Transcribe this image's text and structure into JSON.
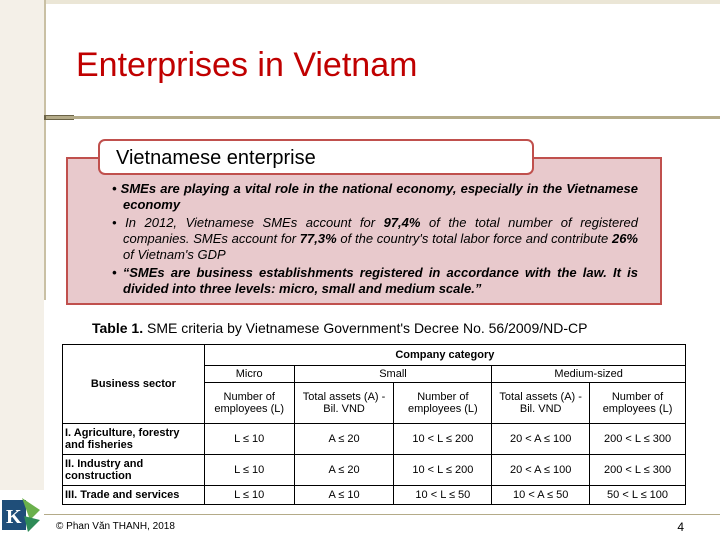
{
  "slide": {
    "title": "Enterprises in Vietnam",
    "heading": "Vietnamese enterprise"
  },
  "bullets": {
    "b1": "• SMEs are playing a vital role in the national economy, especially in the Vietnamese economy",
    "b2_pre": "• In 2012, Vietnamese SMEs account for ",
    "b2_v1": "97,4%",
    "b2_mid1": " of the total number of registered companies. SMEs account for ",
    "b2_v2": "77,3%",
    "b2_mid2": " of the country's total labor force and contribute ",
    "b2_v3": "26%",
    "b2_post": " of Vietnam's GDP",
    "b3": "• “SMEs are business establishments registered in accordance with the law. It is divided into three levels: micro, small and medium scale.”"
  },
  "table": {
    "caption_label": "Table 1.",
    "caption_text": " SME criteria by Vietnamese Government's Decree No. 56/2009/ND-CP",
    "company_category": "Company category",
    "business_sector": "Business sector",
    "levels": [
      "Micro",
      "Small",
      "Medium-sized"
    ],
    "subheaders": [
      "Number of employees (L)",
      "Total assets (A) - Bil. VND",
      "Number of employees (L)",
      "Total assets (A) - Bil. VND",
      "Number of employees (L)"
    ],
    "rows": [
      {
        "sector": "I. Agriculture, forestry and fisheries",
        "cells": [
          "L ≤ 10",
          "A ≤ 20",
          "10 < L ≤ 200",
          "20 < A ≤ 100",
          "200 < L ≤ 300"
        ]
      },
      {
        "sector": "II. Industry and construction",
        "cells": [
          "L ≤ 10",
          "A ≤ 20",
          "10 < L ≤ 200",
          "20 < A ≤ 100",
          "200 < L ≤ 300"
        ]
      },
      {
        "sector": "III. Trade and services",
        "cells": [
          "L ≤ 10",
          "A ≤ 10",
          "10 < L ≤ 50",
          "10 < A ≤ 50",
          "50 < L ≤ 100"
        ]
      }
    ]
  },
  "footer": {
    "copyright": "© Phan Văn THANH, 2018",
    "page_number": "4",
    "logo_letter": "K"
  },
  "colors": {
    "title": "#c00000",
    "box_fill": "#e8c9cc",
    "box_border": "#c0504d"
  }
}
